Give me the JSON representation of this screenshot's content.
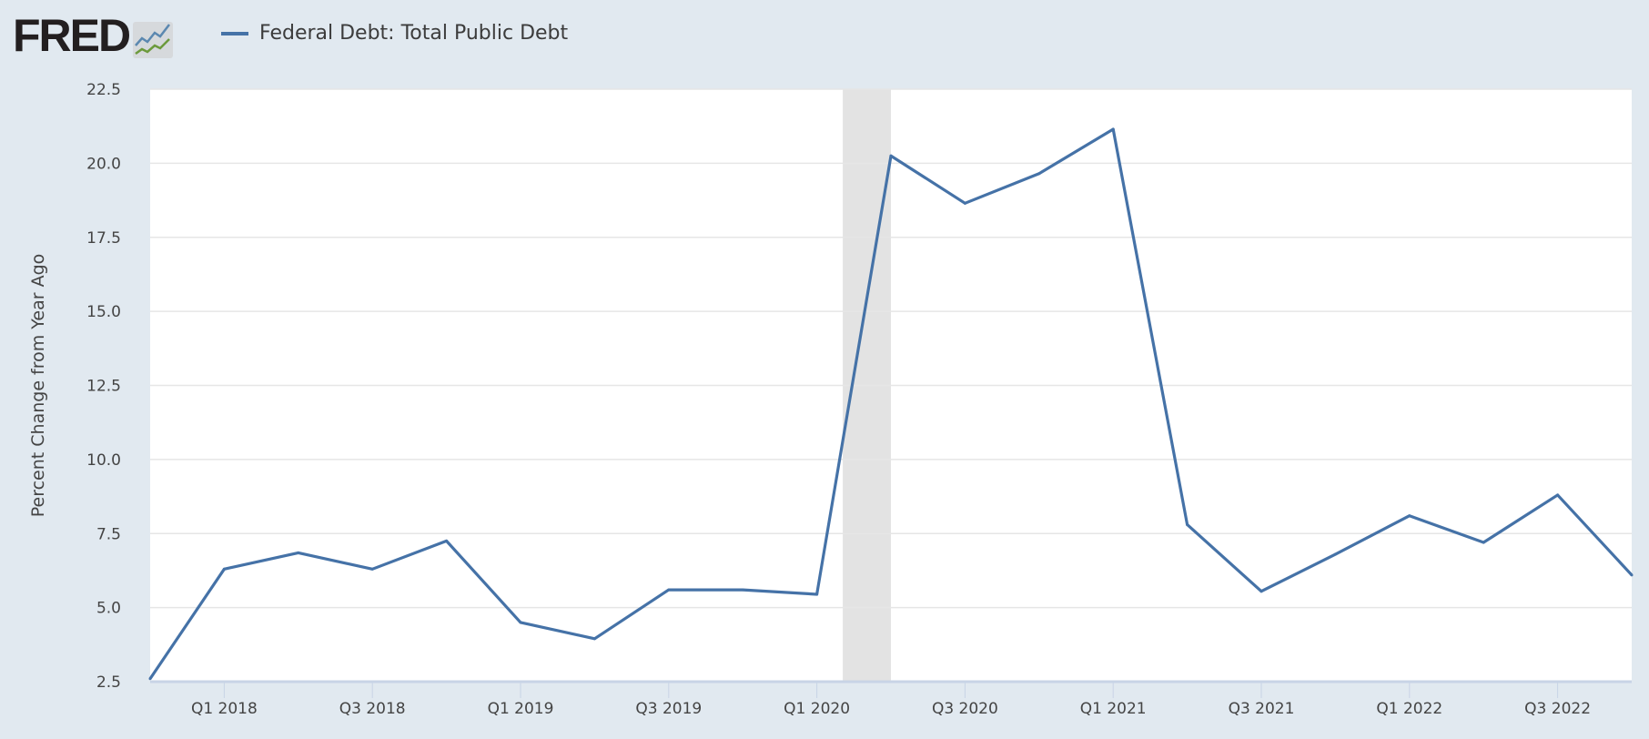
{
  "header": {
    "logo_text": "FRED",
    "logo_icon": "chart-line-icon"
  },
  "colors": {
    "series": "#4572a7",
    "recession": "#e3e3e3",
    "grid": "#e6e6e6",
    "background": "#e1e9f0"
  },
  "chart_data": {
    "type": "line",
    "title": "",
    "ylabel": "Percent Change from Year Ago",
    "xlabel": "",
    "ylim": [
      2.5,
      22.5
    ],
    "yticks": [
      "2.5",
      "5.0",
      "7.5",
      "10.0",
      "12.5",
      "15.0",
      "17.5",
      "20.0",
      "22.5"
    ],
    "xtick_labels": [
      "Q1 2018",
      "Q3 2018",
      "Q1 2019",
      "Q3 2019",
      "Q1 2020",
      "Q3 2020",
      "Q1 2021",
      "Q3 2021",
      "Q1 2022",
      "Q3 2022"
    ],
    "legend": {
      "position": "top-left"
    },
    "grid": true,
    "recession": {
      "start": "2020 Q1 (Feb)",
      "end": "2020 Q2 (Apr)",
      "start_q": 9.35,
      "end_q": 10.0
    },
    "series": [
      {
        "name": "Federal Debt: Total Public Debt",
        "x": [
          "Q4 2017",
          "Q1 2018",
          "Q2 2018",
          "Q3 2018",
          "Q4 2018",
          "Q1 2019",
          "Q2 2019",
          "Q3 2019",
          "Q4 2019",
          "Q1 2020",
          "Q2 2020",
          "Q3 2020",
          "Q4 2020",
          "Q1 2021",
          "Q2 2021",
          "Q3 2021",
          "Q4 2021",
          "Q1 2022",
          "Q2 2022",
          "Q3 2022",
          "Q4 2022"
        ],
        "values": [
          2.6,
          6.3,
          6.85,
          6.3,
          7.25,
          4.5,
          3.95,
          5.6,
          5.6,
          5.45,
          20.25,
          18.65,
          19.65,
          21.15,
          7.8,
          5.55,
          6.8,
          8.1,
          7.2,
          8.8,
          6.1
        ]
      }
    ]
  }
}
